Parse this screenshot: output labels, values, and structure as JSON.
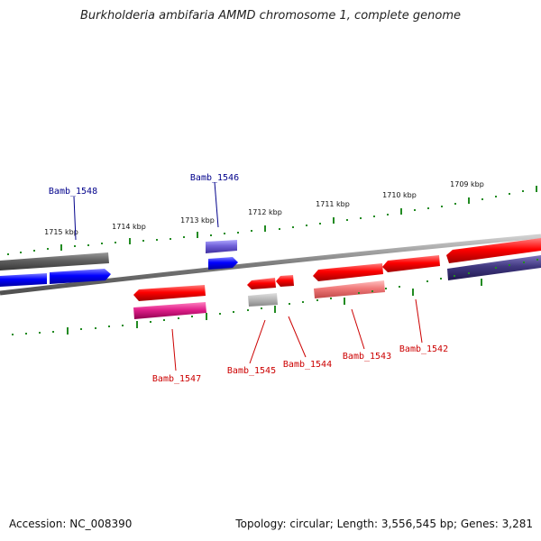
{
  "title": "Burkholderia ambifaria AMMD chromosome 1, complete genome",
  "footer": {
    "accession": "Accession: NC_008390",
    "topology": "Topology: circular; Length: 3,556,545 bp; Genes: 3,281"
  },
  "scale": {
    "ticks": [
      "1715 kbp",
      "1714 kbp",
      "1713 kbp",
      "1712 kbp",
      "1711 kbp",
      "1710 kbp",
      "1709 kbp"
    ]
  },
  "genes": {
    "forward_labels": [
      "Bamb_1548",
      "Bamb_1546"
    ],
    "reverse_labels": [
      "Bamb_1547",
      "Bamb_1545",
      "Bamb_1544",
      "Bamb_1543",
      "Bamb_1542"
    ]
  },
  "colors": {
    "forward_label": "#00008b",
    "reverse_label": "#cc0000",
    "backbone": "#808080",
    "ticks": "#228b22"
  }
}
